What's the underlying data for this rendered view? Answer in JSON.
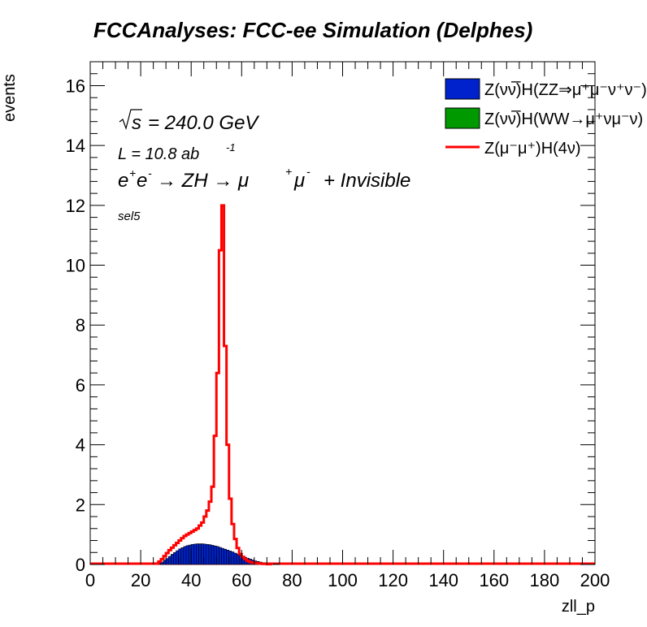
{
  "chart_data": {
    "type": "histogram",
    "title": "FCCAnalyses: FCC-ee Simulation (Delphes)",
    "xlabel": "zll_p",
    "ylabel": "events",
    "xlim": [
      0,
      200
    ],
    "ylim": [
      0,
      16.8
    ],
    "x_ticks": [
      "0",
      "20",
      "40",
      "60",
      "80",
      "100",
      "120",
      "140",
      "160",
      "180",
      "200"
    ],
    "y_ticks": [
      "0",
      "2",
      "4",
      "6",
      "8",
      "10",
      "12",
      "14",
      "16"
    ],
    "annotations": {
      "sqrt_s": "= 240.0 GeV",
      "lumi": "L = 10.8 ab",
      "lumi_exp": "-1",
      "process_a": "e",
      "process_b": "e",
      "process_c": "→ ZH → μ",
      "process_d": "μ",
      "process_e": "+ Invisible",
      "selection": "sel5"
    },
    "legend": {
      "position": "top-right",
      "entries": [
        {
          "label": "Z(νν̅)H(ZZ⇒μ⁺μ⁻ν⁺ν⁻)",
          "color": "#0022cc",
          "style": "fill"
        },
        {
          "label": "Z(νν̅)H(WW→μ⁺νμ⁻ν)",
          "color": "#009900",
          "style": "fill"
        },
        {
          "label": "Z(μ⁻μ⁺)H(4ν)",
          "color": "#ff0000",
          "style": "line"
        }
      ]
    },
    "bin_width": 1,
    "x_start": 0,
    "series": [
      {
        "name": "Z(νν̅)H(ZZ⇒μ⁺μ⁻ν⁺ν⁻)",
        "color": "#0022cc",
        "style": "fill",
        "x": [
          27,
          28,
          29,
          30,
          31,
          32,
          33,
          34,
          35,
          36,
          37,
          38,
          39,
          40,
          41,
          42,
          43,
          44,
          45,
          46,
          47,
          48,
          49,
          50,
          51,
          52,
          53,
          54,
          55,
          56,
          57,
          58,
          59,
          60,
          61,
          62,
          63,
          64,
          65,
          66,
          67,
          68,
          69,
          70,
          71,
          72,
          73,
          74
        ],
        "values": [
          0.03,
          0.08,
          0.14,
          0.2,
          0.27,
          0.34,
          0.4,
          0.46,
          0.52,
          0.56,
          0.6,
          0.63,
          0.65,
          0.67,
          0.68,
          0.69,
          0.69,
          0.69,
          0.68,
          0.67,
          0.66,
          0.64,
          0.62,
          0.6,
          0.57,
          0.54,
          0.51,
          0.48,
          0.45,
          0.42,
          0.38,
          0.35,
          0.31,
          0.28,
          0.24,
          0.21,
          0.18,
          0.15,
          0.12,
          0.1,
          0.08,
          0.06,
          0.05,
          0.04,
          0.03,
          0.02,
          0.01,
          0.01
        ]
      },
      {
        "name": "Z(νν̅)H(WW→μ⁺νμ⁻ν)",
        "color": "#009900",
        "style": "fill",
        "x": [],
        "values": []
      },
      {
        "name": "Z(μ⁻μ⁺)H(4ν)",
        "color": "#ff0000",
        "style": "line",
        "x": [
          26,
          27,
          28,
          29,
          30,
          31,
          32,
          33,
          34,
          35,
          36,
          37,
          38,
          39,
          40,
          41,
          42,
          43,
          44,
          45,
          46,
          47,
          48,
          49,
          50,
          51,
          52,
          53,
          54,
          55,
          56,
          57,
          58,
          59,
          60,
          61,
          62,
          63,
          64,
          65,
          66,
          67,
          68,
          69,
          70,
          71
        ],
        "values": [
          0.03,
          0.1,
          0.18,
          0.28,
          0.38,
          0.48,
          0.56,
          0.64,
          0.72,
          0.8,
          0.88,
          0.95,
          1.0,
          1.05,
          1.1,
          1.15,
          1.2,
          1.3,
          1.4,
          1.6,
          1.8,
          2.1,
          2.6,
          4.3,
          6.4,
          10.5,
          12.0,
          7.3,
          4.0,
          2.2,
          1.35,
          0.85,
          0.55,
          0.35,
          0.25,
          0.18,
          0.12,
          0.08,
          0.06,
          0.05,
          0.04,
          0.03,
          0.02,
          0.02,
          0.01,
          0.01
        ]
      }
    ]
  }
}
